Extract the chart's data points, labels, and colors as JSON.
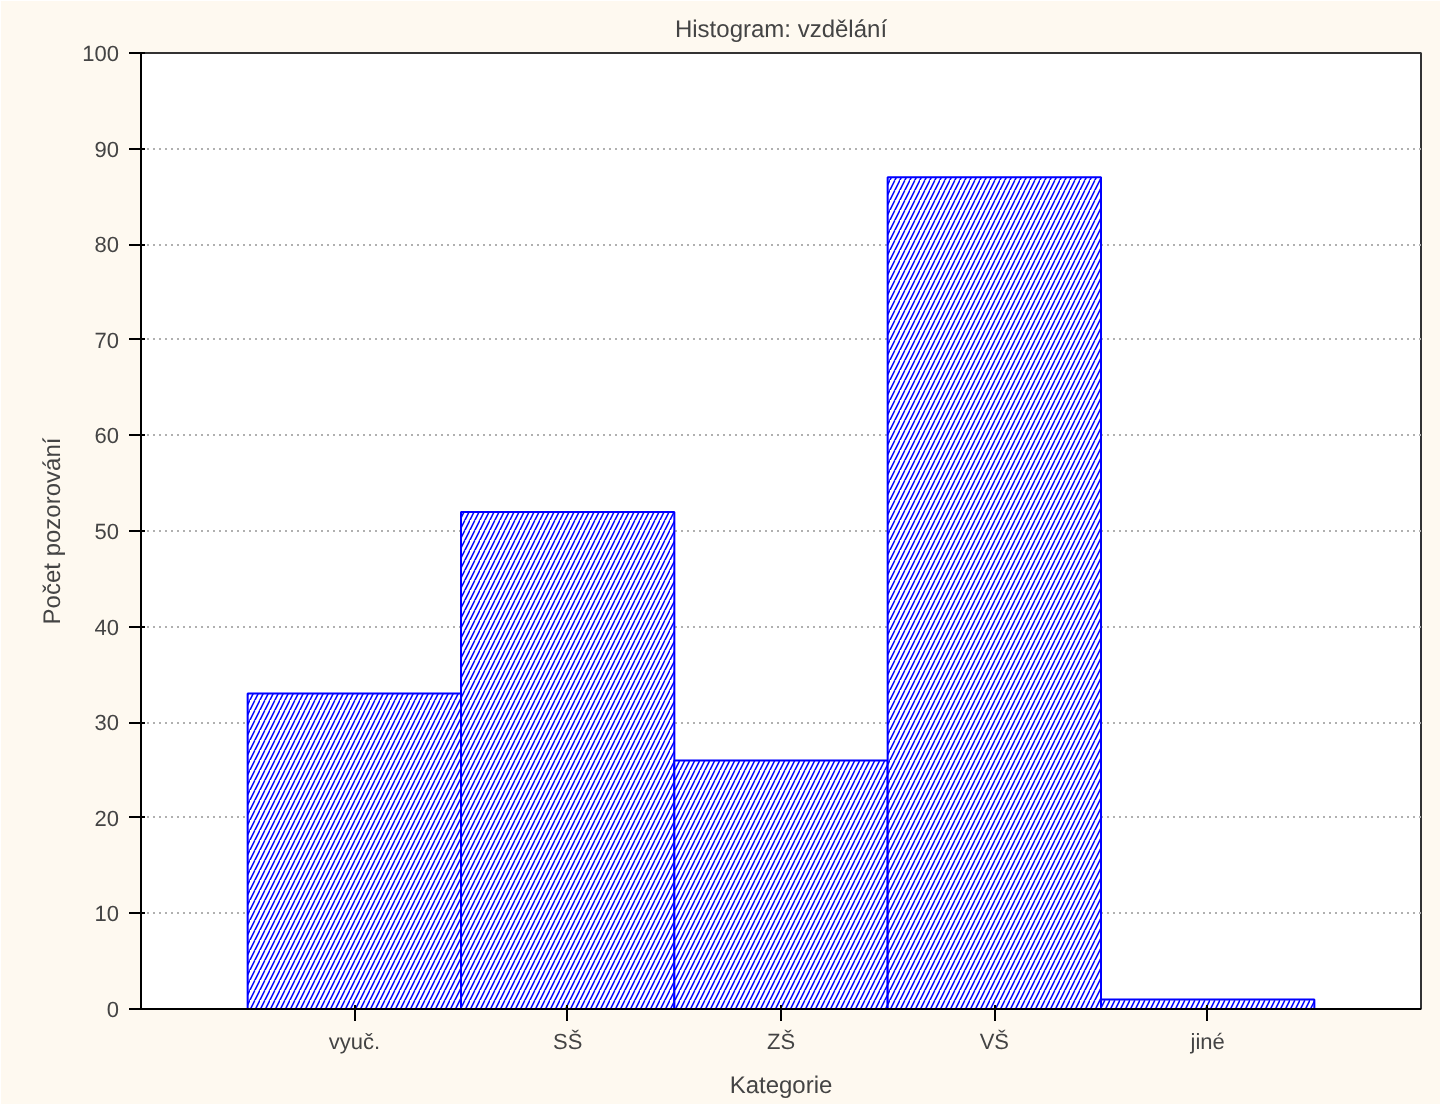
{
  "chart_data": {
    "type": "bar",
    "title": "Histogram: vzdělání",
    "xlabel": "Kategorie",
    "ylabel": "Počet pozorování",
    "categories": [
      "vyuč.",
      "SŠ",
      "ZŠ",
      "VŠ",
      "jiné"
    ],
    "values": [
      33,
      52,
      26,
      87,
      1
    ],
    "color": "#0000ff",
    "ylim": [
      0,
      100
    ],
    "yticks": [
      0,
      10,
      20,
      30,
      40,
      50,
      60,
      70,
      80,
      90,
      100
    ],
    "grid": "y"
  }
}
